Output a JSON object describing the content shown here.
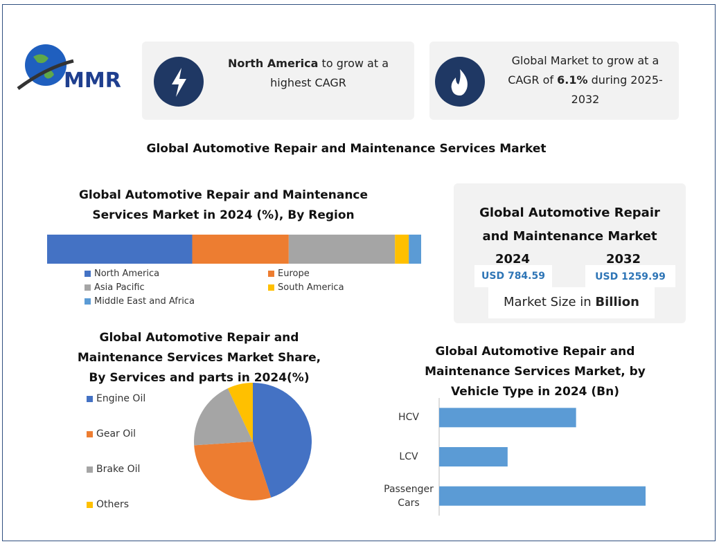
{
  "logo": {
    "text": "MMR"
  },
  "highlights": [
    {
      "bold": "North America",
      "text": " to grow at a highest CAGR"
    },
    {
      "text": "Global Market to grow at a CAGR of ",
      "bold": "6.1%",
      "text_after": " during 2025-2032"
    }
  ],
  "title": "Global Automotive Repair and Maintenance Services Market",
  "market_size": {
    "title": "Global Automotive Repair and Maintenance Market",
    "years": [
      "2024",
      "2032"
    ],
    "values": [
      "USD 784.59",
      "USD 1259.99"
    ],
    "footer": "Market Size in ",
    "footer_bold": "Billion"
  },
  "chart_data": [
    {
      "type": "stacked-bar",
      "title": "Global Automotive Repair and Maintenance Services Market in 2024 (%), By Region",
      "series": [
        {
          "name": "North America",
          "color": "#4472c4",
          "values": [
            38.8
          ]
        },
        {
          "name": "Europe",
          "color": "#ed7d31",
          "values": [
            25.8
          ]
        },
        {
          "name": "Asia Pacific",
          "color": "#a5a5a5",
          "values": [
            28.4
          ]
        },
        {
          "name": "South America",
          "color": "#ffc000",
          "values": [
            3.7
          ]
        },
        {
          "name": "Middle East and Africa",
          "color": "#5b9bd5",
          "values": [
            3.3
          ]
        }
      ]
    },
    {
      "type": "pie",
      "title": "Global Automotive Repair and Maintenance Services Market Share, By Services and parts in 2024(%)",
      "categories": [
        "Engine Oil",
        "Gear Oil",
        "Brake Oil",
        "Others"
      ],
      "values": [
        45,
        29,
        19,
        7
      ],
      "colors": [
        "#4472c4",
        "#ed7d31",
        "#a5a5a5",
        "#ffc000"
      ]
    },
    {
      "type": "hbar",
      "title": "Global Automotive Repair and Maintenance Services Market, by Vehicle Type in 2024 (Bn)",
      "categories": [
        "HCV",
        "LCV",
        "Passenger Cars"
      ],
      "values": [
        260,
        130,
        392
      ],
      "color": "#5b9bd5"
    }
  ]
}
